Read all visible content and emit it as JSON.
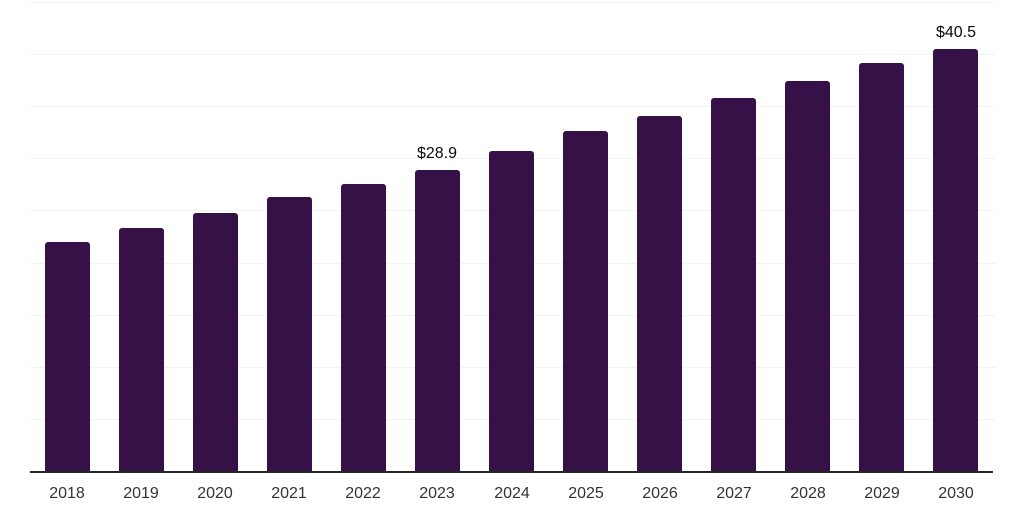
{
  "chart_data": {
    "type": "bar",
    "title": "",
    "xlabel": "",
    "ylabel": "",
    "categories": [
      "2018",
      "2019",
      "2020",
      "2021",
      "2022",
      "2023",
      "2024",
      "2025",
      "2026",
      "2027",
      "2028",
      "2029",
      "2030"
    ],
    "values": [
      22.0,
      23.3,
      24.8,
      26.3,
      27.5,
      28.9,
      30.7,
      32.6,
      34.1,
      35.8,
      37.4,
      39.1,
      40.5
    ],
    "data_labels": [
      "",
      "",
      "",
      "",
      "",
      "$28.9",
      "",
      "",
      "",
      "",
      "",
      "",
      "$40.5"
    ],
    "currency_prefix": "$",
    "ylim": [
      0,
      45
    ],
    "gridline_step": 5,
    "grid": true,
    "legend": "none",
    "y_axis_tick_labels_visible": false
  },
  "colors": {
    "bar": "#351148",
    "gridline": "#f2f2f2",
    "axis_line": "#262626",
    "tick_label": "#333333",
    "data_label": "#0a0a0a",
    "background": "#ffffff"
  }
}
